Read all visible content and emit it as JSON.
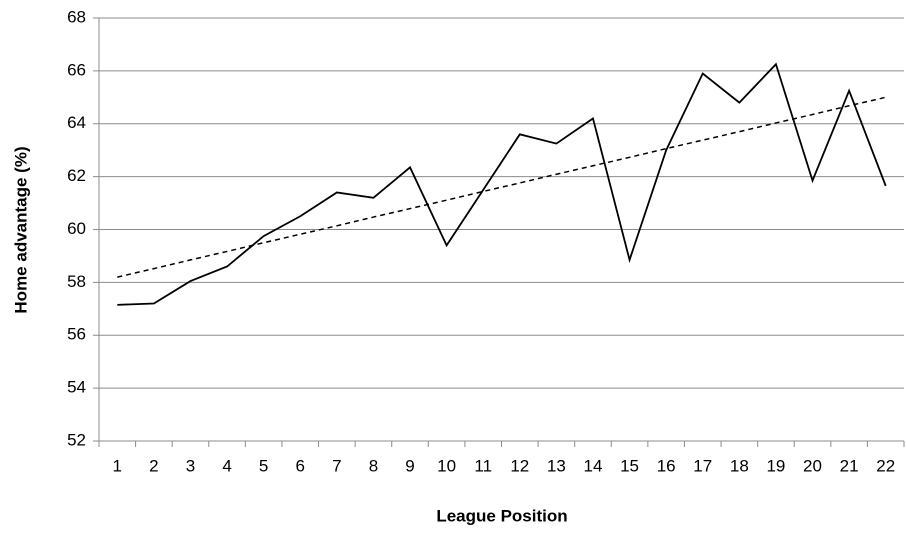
{
  "chart_data": {
    "type": "line",
    "xlabel": "League Position",
    "ylabel": "Home advantage (%)",
    "categories": [
      "1",
      "2",
      "3",
      "4",
      "5",
      "6",
      "7",
      "8",
      "9",
      "10",
      "11",
      "12",
      "13",
      "14",
      "15",
      "16",
      "17",
      "18",
      "19",
      "20",
      "21",
      "22"
    ],
    "series": [
      {
        "color": "#000000",
        "dashed": false,
        "values": [
          57.15,
          57.2,
          58.05,
          58.6,
          59.75,
          60.5,
          61.4,
          61.2,
          62.35,
          59.4,
          61.5,
          63.6,
          63.25,
          64.2,
          58.85,
          63.0,
          65.9,
          64.8,
          66.25,
          61.85,
          65.25,
          61.65
        ]
      },
      {
        "color": "#000000",
        "dashed": true,
        "values": [
          58.2,
          58.52,
          58.85,
          59.17,
          59.5,
          59.82,
          60.14,
          60.47,
          60.79,
          61.11,
          61.44,
          61.76,
          62.09,
          62.41,
          62.73,
          63.06,
          63.38,
          63.7,
          64.03,
          64.35,
          64.68,
          65.0
        ]
      }
    ],
    "ylim": [
      52,
      68
    ],
    "yticks": [
      52,
      54,
      56,
      58,
      60,
      62,
      64,
      66,
      68
    ],
    "grid": true
  }
}
